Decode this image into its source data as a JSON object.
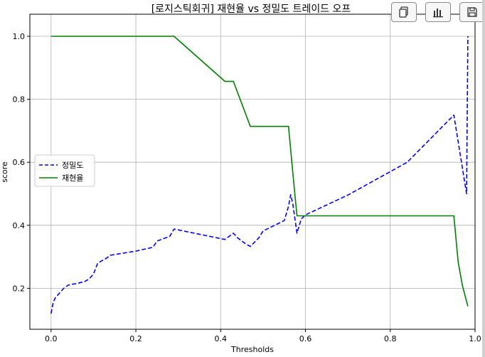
{
  "toolbar": {
    "buttons": [
      {
        "icon": "copy-icon"
      },
      {
        "icon": "bar-chart-icon"
      },
      {
        "icon": "save-icon"
      }
    ]
  },
  "chart_data": {
    "type": "line",
    "title": "[로지스틱회귀] 재현율 vs 정밀도 트레이드 오프",
    "xlabel": "Thresholds",
    "ylabel": "score",
    "xlim": [
      -0.05,
      1.0
    ],
    "ylim": [
      0.07,
      1.07
    ],
    "xticks": [
      0.0,
      0.2,
      0.4,
      0.6,
      0.8,
      1.0
    ],
    "xtick_labels": [
      "0.0",
      "0.2",
      "0.4",
      "0.6",
      "0.8",
      "1.0"
    ],
    "yticks": [
      0.2,
      0.4,
      0.6,
      0.8,
      1.0
    ],
    "ytick_labels": [
      "0.2",
      "0.4",
      "0.6",
      "0.8",
      "1.0"
    ],
    "grid": true,
    "legend_position": "center-left",
    "series": [
      {
        "name": "정밀도",
        "color": "#0000ff",
        "style": "dashed",
        "x": [
          0.0,
          0.005,
          0.01,
          0.02,
          0.03,
          0.04,
          0.05,
          0.06,
          0.08,
          0.09,
          0.1,
          0.11,
          0.13,
          0.14,
          0.2,
          0.24,
          0.25,
          0.28,
          0.29,
          0.41,
          0.43,
          0.44,
          0.46,
          0.47,
          0.49,
          0.5,
          0.55,
          0.56,
          0.565,
          0.57,
          0.58,
          0.59,
          0.6,
          0.7,
          0.84,
          0.95,
          0.98,
          0.983
        ],
        "y": [
          0.12,
          0.155,
          0.17,
          0.185,
          0.2,
          0.21,
          0.213,
          0.215,
          0.222,
          0.23,
          0.245,
          0.28,
          0.295,
          0.305,
          0.318,
          0.33,
          0.35,
          0.365,
          0.388,
          0.355,
          0.375,
          0.36,
          0.34,
          0.333,
          0.36,
          0.382,
          0.415,
          0.46,
          0.497,
          0.47,
          0.375,
          0.42,
          0.433,
          0.496,
          0.6,
          0.75,
          0.5,
          1.0
        ]
      },
      {
        "name": "재현율",
        "color": "#008000",
        "style": "solid",
        "x": [
          0.0,
          0.29,
          0.41,
          0.43,
          0.47,
          0.56,
          0.57,
          0.58,
          0.585,
          0.95,
          0.96,
          0.97,
          0.983
        ],
        "y": [
          1.0,
          1.0,
          0.857,
          0.857,
          0.714,
          0.714,
          0.57,
          0.43,
          0.43,
          0.43,
          0.285,
          0.21,
          0.143
        ]
      }
    ]
  }
}
